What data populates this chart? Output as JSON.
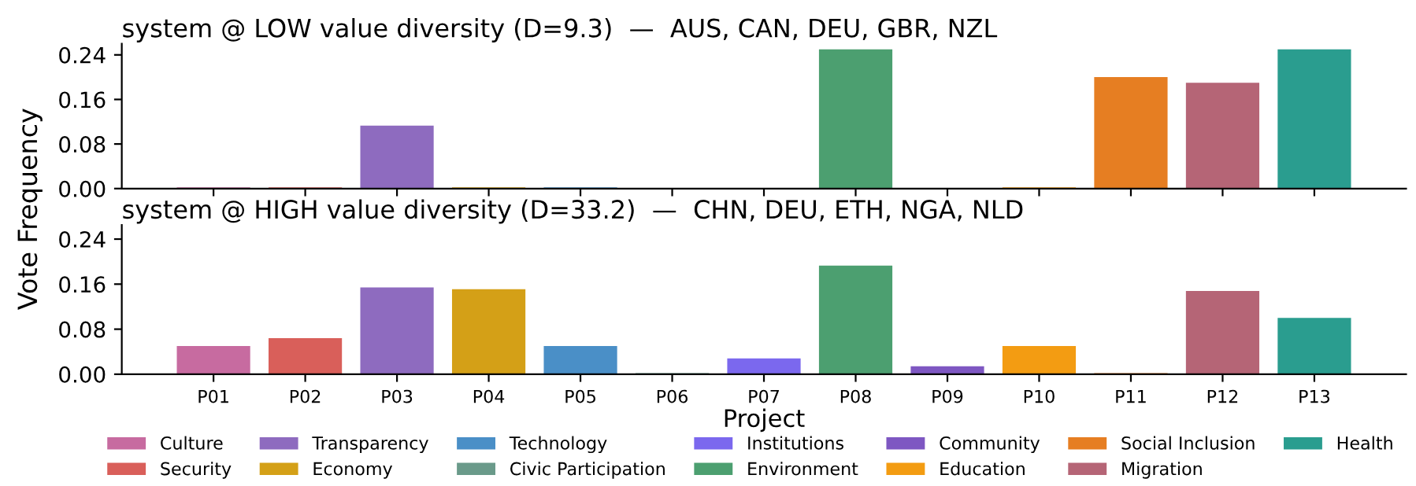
{
  "chart_data": [
    {
      "type": "bar",
      "title": "system @ LOW value diversity (D=9.3)  —  AUS, CAN, DEU, GBR, NZL",
      "ylabel": "Vote Frequency",
      "categories": [
        null,
        null,
        null,
        null,
        null,
        null,
        null,
        null,
        null,
        null,
        null,
        null,
        null
      ],
      "ylim": [
        0,
        0.26
      ],
      "yticks": [
        {
          "value": 0,
          "label": "0.00"
        },
        {
          "value": 0.08,
          "label": "0.08"
        },
        {
          "value": 0.16,
          "label": "0.16"
        },
        {
          "value": 0.24,
          "label": "0.24"
        }
      ],
      "tick_labels": "y",
      "grid": false,
      "legend": false,
      "series": [
        {
          "color": "#c76ba0",
          "values": [
            0.002,
            null,
            null,
            null,
            null,
            null,
            null,
            null,
            null,
            null,
            null,
            null,
            null
          ]
        },
        {
          "color": "#d95f5a",
          "values": [
            null,
            0.002,
            null,
            null,
            null,
            null,
            null,
            null,
            null,
            null,
            null,
            null,
            null
          ]
        },
        {
          "color": "#8e6bbf",
          "values": [
            null,
            null,
            0.113,
            null,
            null,
            null,
            null,
            null,
            null,
            null,
            null,
            null,
            null
          ]
        },
        {
          "color": "#d4a017",
          "values": [
            null,
            null,
            null,
            0.002,
            null,
            null,
            null,
            null,
            null,
            null,
            null,
            null,
            null
          ]
        },
        {
          "color": "#4a8fc7",
          "values": [
            null,
            null,
            null,
            null,
            0.002,
            null,
            null,
            null,
            null,
            null,
            null,
            null,
            null
          ]
        },
        {
          "color": "#6a9a8a",
          "values": [
            null,
            null,
            null,
            null,
            null,
            0,
            null,
            null,
            null,
            null,
            null,
            null,
            null
          ]
        },
        {
          "color": "#7b68ee",
          "values": [
            null,
            null,
            null,
            null,
            null,
            null,
            0,
            null,
            null,
            null,
            null,
            null,
            null
          ]
        },
        {
          "color": "#4c9f70",
          "values": [
            null,
            null,
            null,
            null,
            null,
            null,
            null,
            0.25,
            null,
            null,
            null,
            null,
            null
          ]
        },
        {
          "color": "#7e57c2",
          "values": [
            null,
            null,
            null,
            null,
            null,
            null,
            null,
            null,
            0,
            null,
            null,
            null,
            null
          ]
        },
        {
          "color": "#f39c12",
          "values": [
            null,
            null,
            null,
            null,
            null,
            null,
            null,
            null,
            null,
            0.002,
            null,
            null,
            null
          ]
        },
        {
          "color": "#e67e22",
          "values": [
            null,
            null,
            null,
            null,
            null,
            null,
            null,
            null,
            null,
            null,
            0.2,
            null,
            null
          ]
        },
        {
          "color": "#b56576",
          "values": [
            null,
            null,
            null,
            null,
            null,
            null,
            null,
            null,
            null,
            null,
            null,
            0.19,
            null
          ]
        },
        {
          "color": "#2a9d8f",
          "values": [
            null,
            null,
            null,
            null,
            null,
            null,
            null,
            null,
            null,
            null,
            null,
            null,
            0.25
          ]
        }
      ]
    },
    {
      "type": "bar",
      "title": "system @ HIGH value diversity (D=33.2)  —  CHN, DEU, ETH, NGA, NLD",
      "xlabel": "Project",
      "categories": [
        "P01",
        "P02",
        "P03",
        "P04",
        "P05",
        "P06",
        "P07",
        "P08",
        "P09",
        "P10",
        "P11",
        "P12",
        "P13"
      ],
      "ylim": [
        0,
        0.265
      ],
      "yticks": [
        {
          "value": 0,
          "label": "0.00"
        },
        {
          "value": 0.08,
          "label": "0.08"
        },
        {
          "value": 0.16,
          "label": "0.16"
        },
        {
          "value": 0.24,
          "label": "0.24"
        }
      ],
      "grid": false,
      "legend": "bottom",
      "series": [
        {
          "name": "Culture",
          "color": "#c76ba0",
          "values": [
            0.05,
            null,
            null,
            null,
            null,
            null,
            null,
            null,
            null,
            null,
            null,
            null,
            null
          ]
        },
        {
          "name": "Security",
          "color": "#d95f5a",
          "values": [
            null,
            0.064,
            null,
            null,
            null,
            null,
            null,
            null,
            null,
            null,
            null,
            null,
            null
          ]
        },
        {
          "name": "Transparency",
          "color": "#8e6bbf",
          "values": [
            null,
            null,
            0.154,
            null,
            null,
            null,
            null,
            null,
            null,
            null,
            null,
            null,
            null
          ]
        },
        {
          "name": "Economy",
          "color": "#d4a017",
          "values": [
            null,
            null,
            null,
            0.151,
            null,
            null,
            null,
            null,
            null,
            null,
            null,
            null,
            null
          ]
        },
        {
          "name": "Technology",
          "color": "#4a8fc7",
          "values": [
            null,
            null,
            null,
            null,
            0.05,
            null,
            null,
            null,
            null,
            null,
            null,
            null,
            null
          ]
        },
        {
          "name": "Civic Participation",
          "color": "#6a9a8a",
          "values": [
            null,
            null,
            null,
            null,
            null,
            0.002,
            null,
            null,
            null,
            null,
            null,
            null,
            null
          ]
        },
        {
          "name": "Institutions",
          "color": "#7b68ee",
          "values": [
            null,
            null,
            null,
            null,
            null,
            null,
            0.028,
            null,
            null,
            null,
            null,
            null,
            null
          ]
        },
        {
          "name": "Environment",
          "color": "#4c9f70",
          "values": [
            null,
            null,
            null,
            null,
            null,
            null,
            null,
            0.193,
            null,
            null,
            null,
            null,
            null
          ]
        },
        {
          "name": "Community",
          "color": "#7e57c2",
          "values": [
            null,
            null,
            null,
            null,
            null,
            null,
            null,
            null,
            0.014,
            null,
            null,
            null,
            null
          ]
        },
        {
          "name": "Education",
          "color": "#f39c12",
          "values": [
            null,
            null,
            null,
            null,
            null,
            null,
            null,
            null,
            null,
            0.05,
            null,
            null,
            null
          ]
        },
        {
          "name": "Social Inclusion",
          "color": "#e67e22",
          "values": [
            null,
            null,
            null,
            null,
            null,
            null,
            null,
            null,
            null,
            null,
            0.002,
            null,
            null
          ]
        },
        {
          "name": "Migration",
          "color": "#b56576",
          "values": [
            null,
            null,
            null,
            null,
            null,
            null,
            null,
            null,
            null,
            null,
            null,
            0.148,
            null
          ]
        },
        {
          "name": "Health",
          "color": "#2a9d8f",
          "values": [
            null,
            null,
            null,
            null,
            null,
            null,
            null,
            null,
            null,
            null,
            null,
            null,
            0.1
          ]
        }
      ]
    }
  ]
}
